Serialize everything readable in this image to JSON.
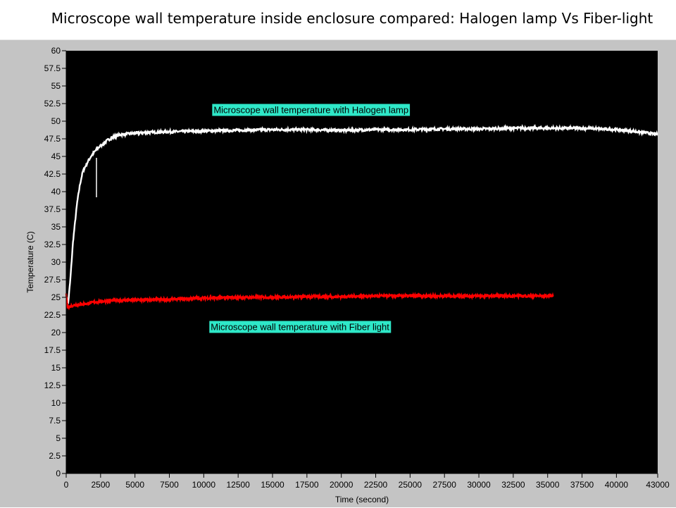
{
  "slide": {
    "title": "Microscope wall temperature inside enclosure compared: Halogen lamp Vs Fiber-light"
  },
  "chart_data": {
    "type": "line",
    "title": "",
    "xlabel": "Time (second)",
    "ylabel": "Temperature (C)",
    "xlim": [
      0,
      43000
    ],
    "ylim": [
      0,
      60
    ],
    "x_ticks": [
      0,
      2500,
      5000,
      7500,
      10000,
      12500,
      15000,
      17500,
      20000,
      22500,
      25000,
      27500,
      30000,
      32500,
      35000,
      37500,
      40000,
      43000
    ],
    "x_tick_labels": [
      "0",
      "2500",
      "5000",
      "7500",
      "10000",
      "12500",
      "15000",
      "17500",
      "20000",
      "22500",
      "25000",
      "27500",
      "30000",
      "32500",
      "35000",
      "37500",
      "40000",
      "43000"
    ],
    "y_ticks": [
      0,
      2.5,
      5,
      7.5,
      10,
      12.5,
      15,
      17.5,
      20,
      22.5,
      25,
      27.5,
      30,
      32.5,
      35,
      37.5,
      40,
      42.5,
      45,
      47.5,
      50,
      52.5,
      55,
      57.5,
      60
    ],
    "y_tick_labels": [
      "0",
      "2.5",
      "5",
      "7.5",
      "10",
      "12.5",
      "15",
      "17.5",
      "20",
      "22.5",
      "25",
      "27.5",
      "30",
      "32.5",
      "35",
      "37.5",
      "40",
      "42.5",
      "45",
      "47.5",
      "50",
      "52.5",
      "55",
      "57.5",
      "60"
    ],
    "grid": false,
    "plot_background": "#000000",
    "frame_background": "#c4c4c4",
    "series": [
      {
        "color": "#ffffff",
        "x": [
          0,
          150,
          300,
          500,
          800,
          1000,
          1200,
          1500,
          1800,
          2000,
          2200,
          2500,
          3000,
          3500,
          4000,
          5000,
          6000,
          7500,
          10000,
          12500,
          15000,
          17500,
          20000,
          22500,
          25000,
          27500,
          30000,
          32500,
          35000,
          37500,
          40000,
          42000,
          43000
        ],
        "y": [
          25.0,
          24.3,
          27.5,
          33.0,
          38.5,
          41.0,
          42.8,
          44.0,
          45.0,
          45.5,
          46.0,
          46.5,
          47.3,
          47.8,
          48.1,
          48.3,
          48.4,
          48.5,
          48.6,
          48.7,
          48.8,
          48.8,
          48.7,
          48.8,
          48.8,
          48.9,
          48.9,
          49.0,
          49.0,
          49.0,
          48.8,
          48.4,
          48.1
        ]
      },
      {
        "color": "#ff0000",
        "x": [
          0,
          100,
          200,
          400,
          600,
          1000,
          1500,
          2000,
          3000,
          4000,
          5000,
          7500,
          10000,
          12500,
          15000,
          17500,
          20000,
          22500,
          25000,
          27500,
          30000,
          32500,
          35400
        ],
        "y": [
          25.5,
          23.7,
          23.6,
          23.8,
          23.9,
          24.0,
          24.1,
          24.3,
          24.5,
          24.6,
          24.6,
          24.7,
          24.9,
          25.0,
          25.0,
          25.1,
          25.1,
          25.2,
          25.2,
          25.2,
          25.2,
          25.2,
          25.2
        ]
      }
    ],
    "glitches": [
      {
        "series": 0,
        "x": 2200,
        "y_from": 44.8,
        "y_to": 39.2
      }
    ],
    "annotations": [
      {
        "text": "Microscope wall temperature with Halogen lamp",
        "x": 17800,
        "y": 51.6,
        "background": "#2ee8c8"
      },
      {
        "text": "Microscope wall temperature with Fiber light",
        "x": 17000,
        "y": 20.8,
        "background": "#2ee8c8"
      }
    ]
  }
}
